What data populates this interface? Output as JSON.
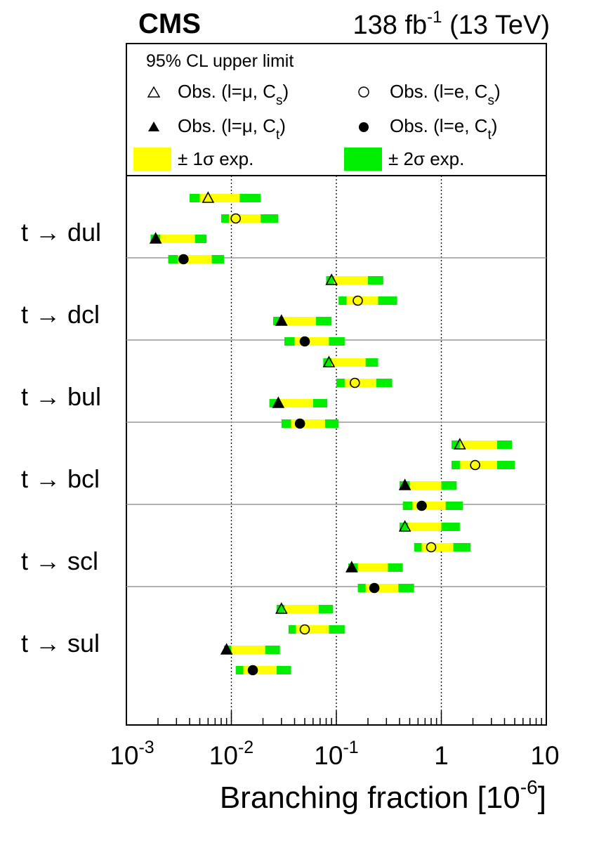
{
  "header": {
    "experiment": "CMS",
    "lumi": "138 fb",
    "lumi_exp": "-1",
    "energy": "(13 TeV)"
  },
  "legend": {
    "title": "95% CL upper limit",
    "entries": [
      {
        "label": "Obs. (l=μ, C",
        "sub": "s",
        "tail": ")",
        "marker": "triangle-open"
      },
      {
        "label": "Obs. (l=e, C",
        "sub": "s",
        "tail": ")",
        "marker": "circle-open"
      },
      {
        "label": "Obs. (l=μ, C",
        "sub": "t",
        "tail": ")",
        "marker": "triangle-filled"
      },
      {
        "label": "Obs. (l=e, C",
        "sub": "t",
        "tail": ")",
        "marker": "circle-filled"
      },
      {
        "label": "± 1σ exp.",
        "marker": "yellow-box"
      },
      {
        "label": "± 2σ exp.",
        "marker": "green-box"
      }
    ]
  },
  "colors": {
    "one_sigma": "#ffff00",
    "two_sigma": "#00ee00",
    "dotted_lines": "#000000",
    "separators": "#999999"
  },
  "chart_data": {
    "type": "interval-scatter",
    "x_scale": "log",
    "xlim": [
      0.001,
      10
    ],
    "xlabel": "Branching fraction [10",
    "xlabel_exp": "-6",
    "xlabel_tail": "]",
    "tick_labels": [
      {
        "base": "10",
        "exp": "-3"
      },
      {
        "base": "10",
        "exp": "-2"
      },
      {
        "base": "10",
        "exp": "-1"
      },
      {
        "base": "1",
        "exp": ""
      },
      {
        "base": "10",
        "exp": ""
      }
    ],
    "categories": [
      "t → dul",
      "t → dcl",
      "t → bul",
      "t → bcl",
      "t → scl",
      "t → sul"
    ],
    "series_markers": [
      "triangle-open",
      "circle-open",
      "triangle-filled",
      "circle-filled"
    ],
    "rows": [
      [
        {
          "obs": 0.006,
          "s2lo": 0.004,
          "s1lo": 0.005,
          "s1hi": 0.012,
          "s2hi": 0.019
        },
        {
          "obs": 0.011,
          "s2lo": 0.008,
          "s1lo": 0.0095,
          "s1hi": 0.019,
          "s2hi": 0.028
        },
        {
          "obs": 0.0019,
          "s2lo": 0.0017,
          "s1lo": 0.0021,
          "s1hi": 0.0045,
          "s2hi": 0.0058
        },
        {
          "obs": 0.0035,
          "s2lo": 0.0025,
          "s1lo": 0.0031,
          "s1hi": 0.0065,
          "s2hi": 0.0085
        }
      ],
      [
        {
          "obs": 0.09,
          "s2lo": 0.08,
          "s1lo": 0.095,
          "s1hi": 0.2,
          "s2hi": 0.28
        },
        {
          "obs": 0.16,
          "s2lo": 0.105,
          "s1lo": 0.125,
          "s1hi": 0.25,
          "s2hi": 0.38
        },
        {
          "obs": 0.03,
          "s2lo": 0.025,
          "s1lo": 0.031,
          "s1hi": 0.064,
          "s2hi": 0.09
        },
        {
          "obs": 0.05,
          "s2lo": 0.032,
          "s1lo": 0.04,
          "s1hi": 0.085,
          "s2hi": 0.12
        }
      ],
      [
        {
          "obs": 0.085,
          "s2lo": 0.075,
          "s1lo": 0.09,
          "s1hi": 0.19,
          "s2hi": 0.25
        },
        {
          "obs": 0.15,
          "s2lo": 0.1,
          "s1lo": 0.12,
          "s1hi": 0.24,
          "s2hi": 0.34
        },
        {
          "obs": 0.028,
          "s2lo": 0.023,
          "s1lo": 0.028,
          "s1hi": 0.06,
          "s2hi": 0.082
        },
        {
          "obs": 0.045,
          "s2lo": 0.03,
          "s1lo": 0.037,
          "s1hi": 0.078,
          "s2hi": 0.105
        }
      ],
      [
        {
          "obs": 1.5,
          "s2lo": 1.25,
          "s1lo": 1.5,
          "s1hi": 3.4,
          "s2hi": 4.7
        },
        {
          "obs": 2.1,
          "s2lo": 1.25,
          "s1lo": 1.5,
          "s1hi": 3.4,
          "s2hi": 5.0
        },
        {
          "obs": 0.45,
          "s2lo": 0.4,
          "s1lo": 0.5,
          "s1hi": 1.0,
          "s2hi": 1.4
        },
        {
          "obs": 0.65,
          "s2lo": 0.43,
          "s1lo": 0.53,
          "s1hi": 1.1,
          "s2hi": 1.6
        }
      ],
      [
        {
          "obs": 0.45,
          "s2lo": 0.4,
          "s1lo": 0.48,
          "s1hi": 1.0,
          "s2hi": 1.5
        },
        {
          "obs": 0.8,
          "s2lo": 0.55,
          "s1lo": 0.65,
          "s1hi": 1.3,
          "s2hi": 1.9
        },
        {
          "obs": 0.14,
          "s2lo": 0.13,
          "s1lo": 0.16,
          "s1hi": 0.31,
          "s2hi": 0.43
        },
        {
          "obs": 0.23,
          "s2lo": 0.16,
          "s1lo": 0.19,
          "s1hi": 0.39,
          "s2hi": 0.55
        }
      ],
      [
        {
          "obs": 0.03,
          "s2lo": 0.027,
          "s1lo": 0.032,
          "s1hi": 0.068,
          "s2hi": 0.093
        },
        {
          "obs": 0.05,
          "s2lo": 0.035,
          "s1lo": 0.041,
          "s1hi": 0.085,
          "s2hi": 0.12
        },
        {
          "obs": 0.009,
          "s2lo": 0.0085,
          "s1lo": 0.01,
          "s1hi": 0.021,
          "s2hi": 0.029
        },
        {
          "obs": 0.016,
          "s2lo": 0.011,
          "s1lo": 0.013,
          "s1hi": 0.027,
          "s2hi": 0.037
        }
      ]
    ]
  }
}
